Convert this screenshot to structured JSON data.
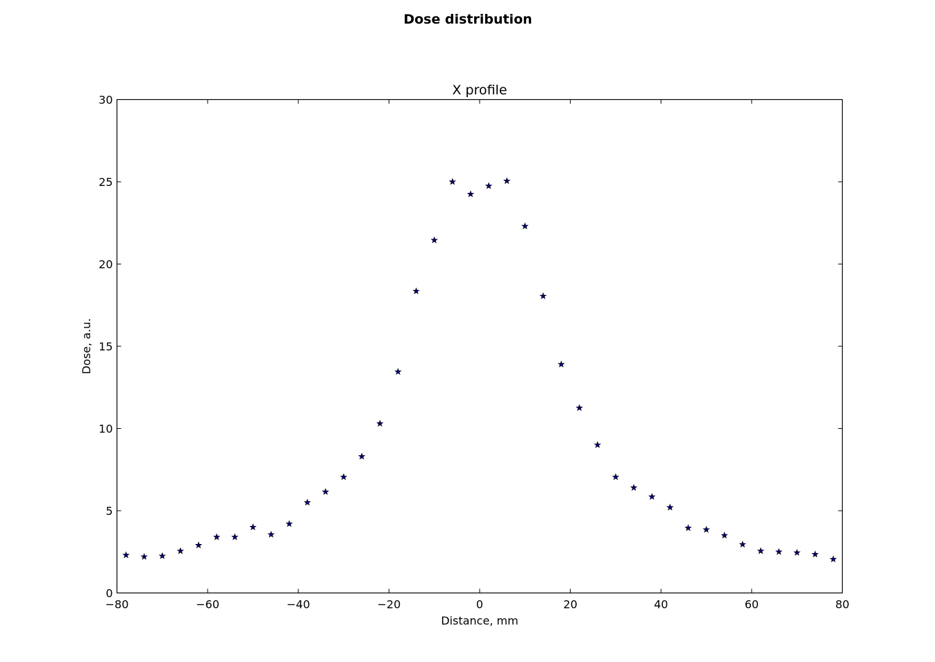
{
  "chart_data": {
    "type": "scatter",
    "suptitle": "Dose distribution",
    "title": "X profile",
    "xlabel": "Distance, mm",
    "ylabel": "Dose, a.u.",
    "xlim": [
      -80,
      80
    ],
    "ylim": [
      0,
      30
    ],
    "xticks": [
      -80,
      -60,
      -40,
      -20,
      0,
      20,
      40,
      60,
      80
    ],
    "yticks": [
      0,
      5,
      10,
      15,
      20,
      25,
      30
    ],
    "xtick_labels": [
      "−80",
      "−60",
      "−40",
      "−20",
      "0",
      "20",
      "40",
      "60",
      "80"
    ],
    "ytick_labels": [
      "0",
      "5",
      "10",
      "15",
      "20",
      "25",
      "30"
    ],
    "grid": false,
    "marker": "star",
    "marker_color": "#00007f",
    "x": [
      -78,
      -74,
      -70,
      -66,
      -62,
      -58,
      -54,
      -50,
      -46,
      -42,
      -38,
      -34,
      -30,
      -26,
      -22,
      -18,
      -14,
      -10,
      -6,
      -2,
      2,
      6,
      10,
      14,
      18,
      22,
      26,
      30,
      34,
      38,
      42,
      46,
      50,
      54,
      58,
      62,
      66,
      70,
      74,
      78
    ],
    "y": [
      2.3,
      2.2,
      2.25,
      2.55,
      2.9,
      3.4,
      3.4,
      4.0,
      3.55,
      4.2,
      5.5,
      6.15,
      7.05,
      8.3,
      10.3,
      13.45,
      18.35,
      21.45,
      25.0,
      24.25,
      24.75,
      25.05,
      22.3,
      18.05,
      13.9,
      11.25,
      9.0,
      7.05,
      6.4,
      5.85,
      5.2,
      3.95,
      3.85,
      3.5,
      2.95,
      2.55,
      2.5,
      2.45,
      2.35,
      2.05
    ]
  }
}
